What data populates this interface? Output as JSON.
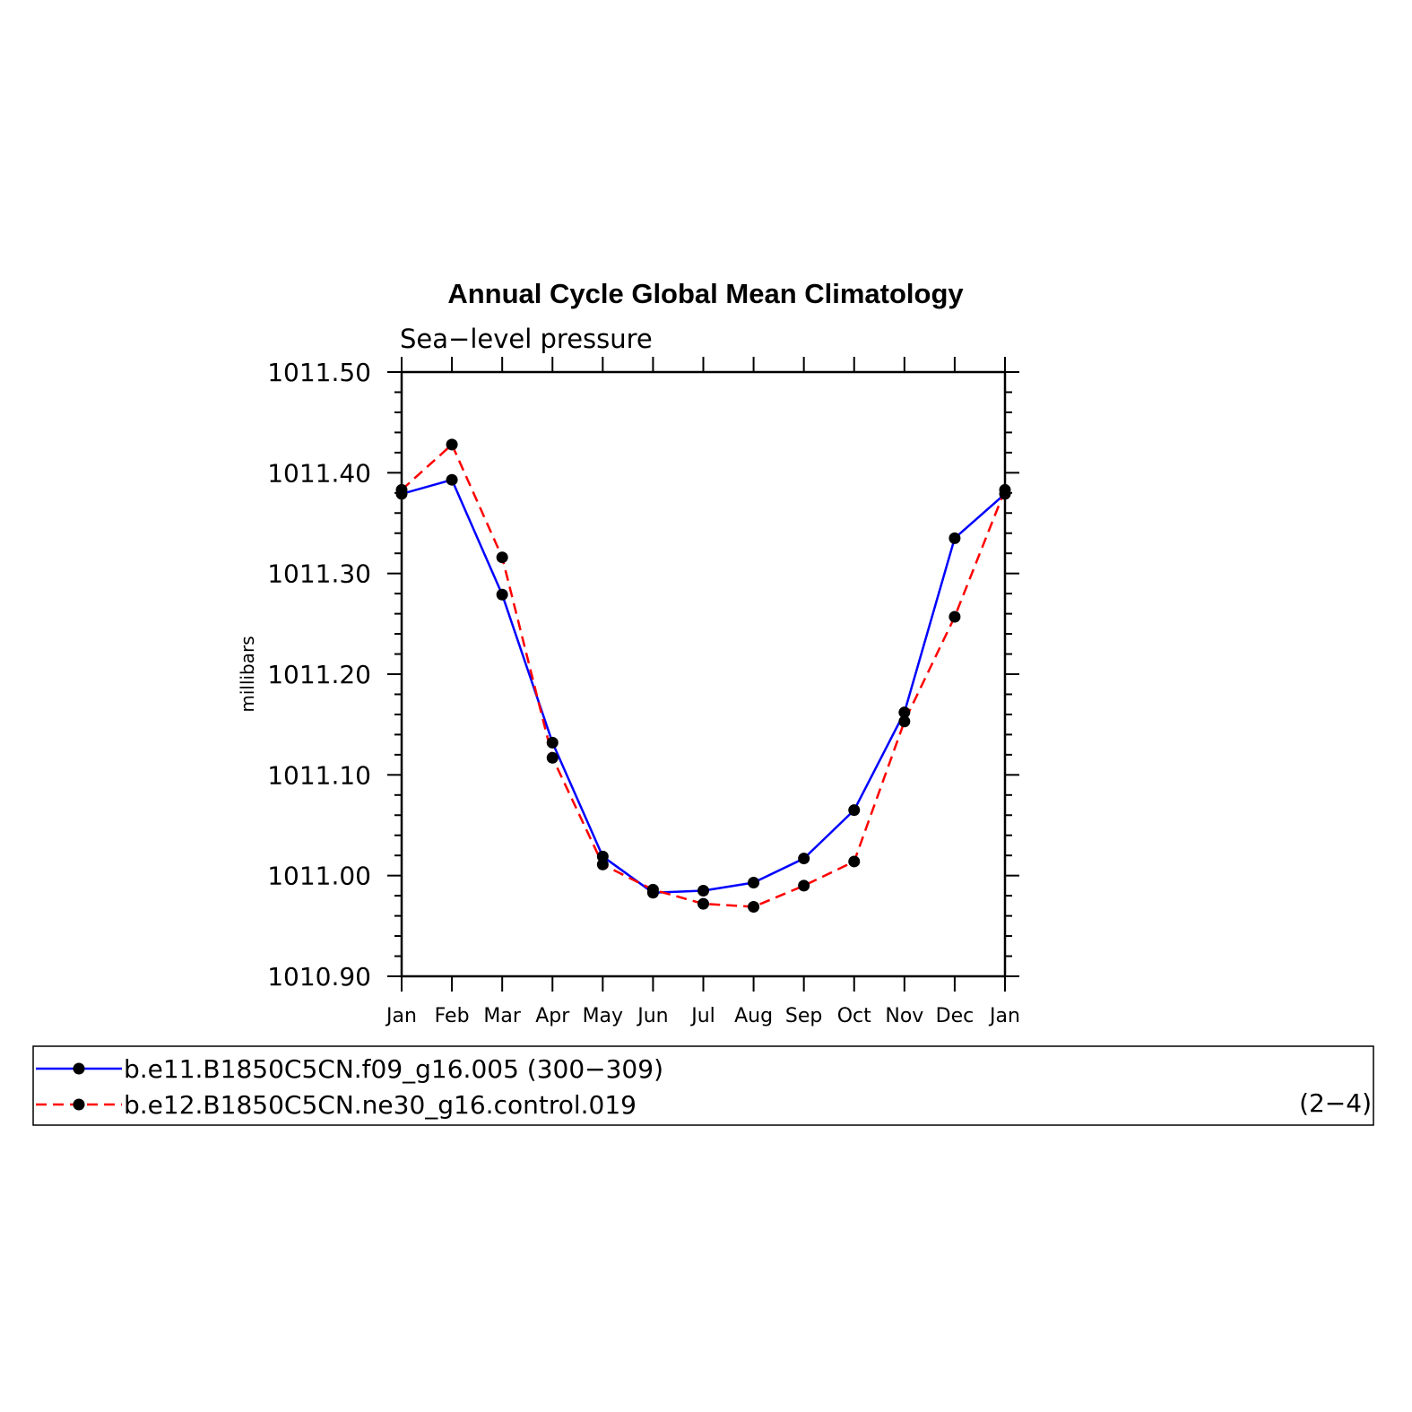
{
  "chart_data": {
    "type": "line",
    "title": "Annual Cycle Global Mean Climatology",
    "subtitle": "Sea−level pressure",
    "xlabel": "",
    "ylabel": "millibars",
    "categories": [
      "Jan",
      "Feb",
      "Mar",
      "Apr",
      "May",
      "Jun",
      "Jul",
      "Aug",
      "Sep",
      "Oct",
      "Nov",
      "Dec",
      "Jan"
    ],
    "ylim": [
      1010.9,
      1011.5
    ],
    "yticks": [
      "1010.90",
      "1011.00",
      "1011.10",
      "1011.20",
      "1011.30",
      "1011.40",
      "1011.50"
    ],
    "ytick_values": [
      1010.9,
      1011.0,
      1011.1,
      1011.2,
      1011.3,
      1011.4,
      1011.5
    ],
    "series": [
      {
        "name": "b.e11.B1850C5CN.f09_g16.005 (300−309)",
        "color": "#0000ff",
        "style": "solid",
        "marker": "dot",
        "values": [
          1011.379,
          1011.393,
          1011.279,
          1011.132,
          1011.019,
          1010.983,
          1010.985,
          1010.993,
          1011.017,
          1011.065,
          1011.162,
          1011.335,
          1011.379
        ]
      },
      {
        "name": "b.e12.B1850C5CN.ne30_g16.control.019",
        "color": "#ff0000",
        "style": "dashed",
        "marker": "dot",
        "values": [
          1011.383,
          1011.428,
          1011.316,
          1011.117,
          1011.011,
          1010.986,
          1010.972,
          1010.969,
          1010.99,
          1011.014,
          1011.153,
          1011.257,
          1011.383
        ]
      }
    ],
    "legend_position": "bottom",
    "grid": false
  },
  "legend": {
    "page_number": "(2−4)"
  }
}
